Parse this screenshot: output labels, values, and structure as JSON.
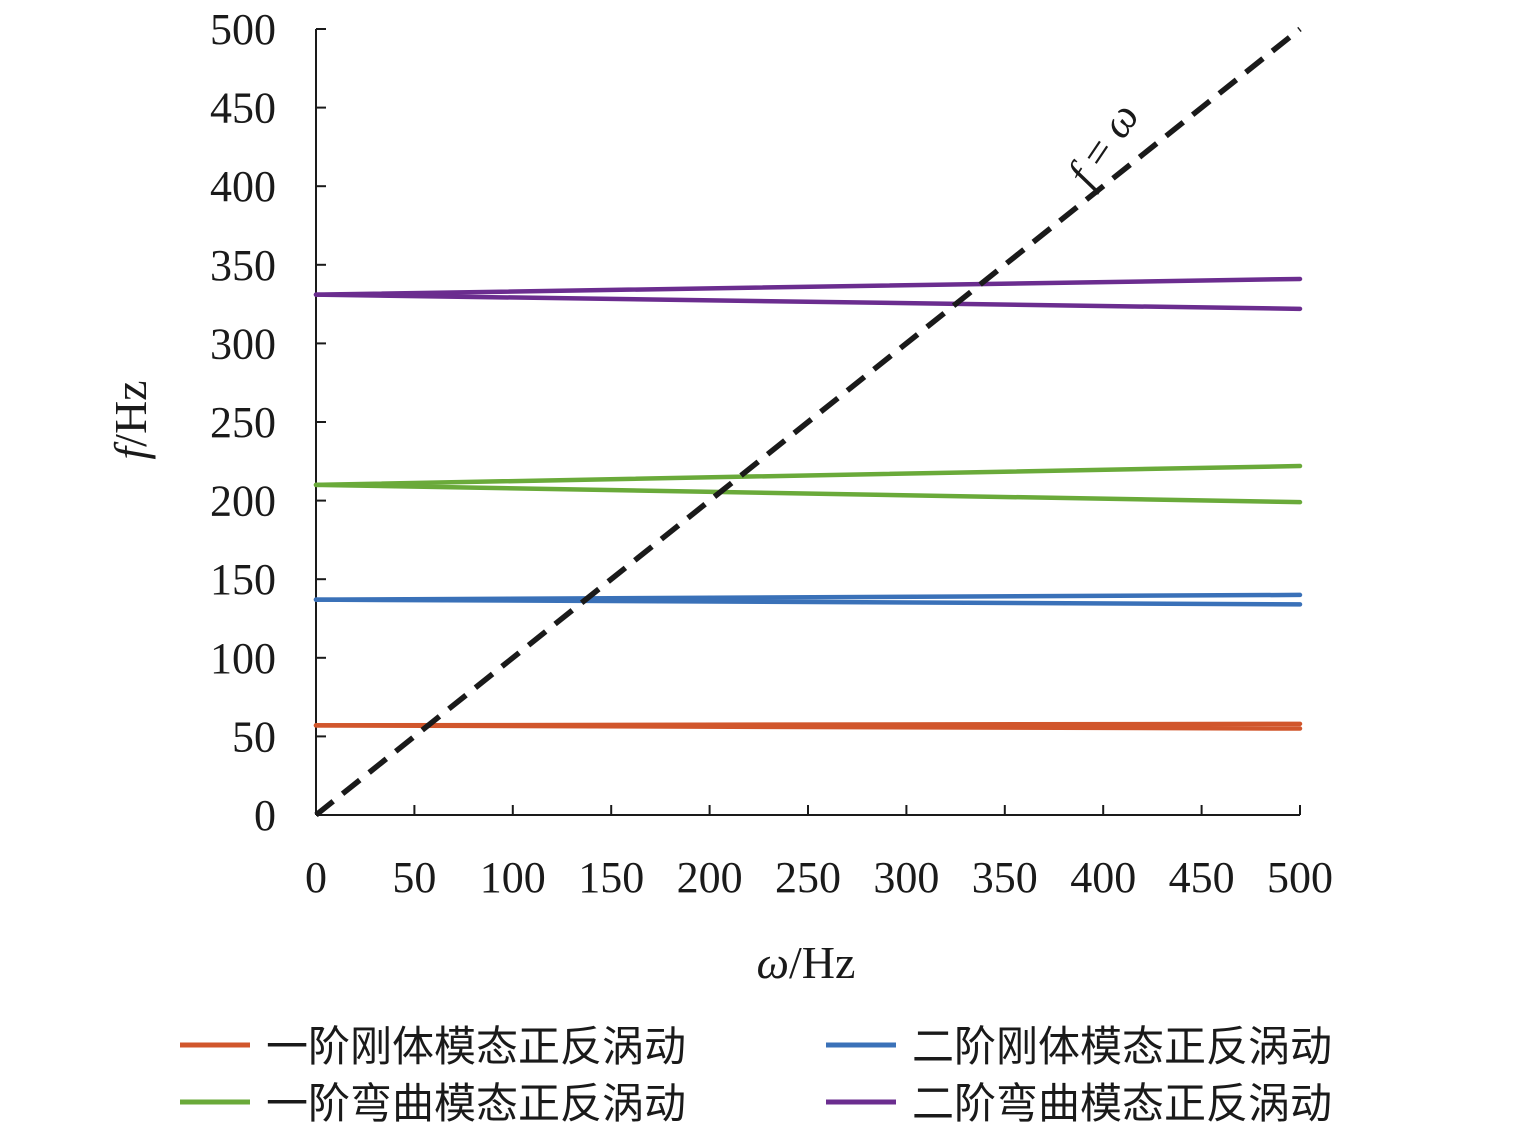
{
  "chart_data": {
    "type": "line",
    "title": "",
    "xlabel": {
      "symbol": "ω",
      "unit": "/Hz"
    },
    "ylabel": {
      "symbol": "f",
      "unit": "/Hz"
    },
    "xlim": [
      0,
      500
    ],
    "ylim": [
      0,
      500
    ],
    "xticks": [
      "0",
      "50",
      "100",
      "150",
      "200",
      "250",
      "300",
      "350",
      "400",
      "450",
      "500"
    ],
    "yticks": [
      "0",
      "50",
      "100",
      "150",
      "200",
      "250",
      "300",
      "350",
      "400",
      "450",
      "500"
    ],
    "grid": false,
    "legend_position": "bottom",
    "series": [
      {
        "name": "一阶刚体模态正反涡动",
        "color": "#d1562c",
        "x": [
          0,
          500
        ],
        "y_upper": [
          57,
          58
        ],
        "y_lower": [
          57,
          55
        ]
      },
      {
        "name": "二阶刚体模态正反涡动",
        "color": "#3a71b8",
        "x": [
          0,
          500
        ],
        "y_upper": [
          137,
          140
        ],
        "y_lower": [
          137,
          134
        ]
      },
      {
        "name": "一阶弯曲模态正反涡动",
        "color": "#6aaa3a",
        "x": [
          0,
          500
        ],
        "y_upper": [
          210,
          222
        ],
        "y_lower": [
          210,
          199
        ]
      },
      {
        "name": "二阶弯曲模态正反涡动",
        "color": "#6b2d8f",
        "x": [
          0,
          500
        ],
        "y_upper": [
          331,
          341
        ],
        "y_lower": [
          331,
          322
        ]
      }
    ],
    "reference_line": {
      "label_lhs": "f",
      "label_op": " = ",
      "label_rhs": "ω",
      "x": [
        0,
        500
      ],
      "y": [
        0,
        500
      ],
      "color": "#1a1a1a",
      "style": "dashed"
    }
  }
}
